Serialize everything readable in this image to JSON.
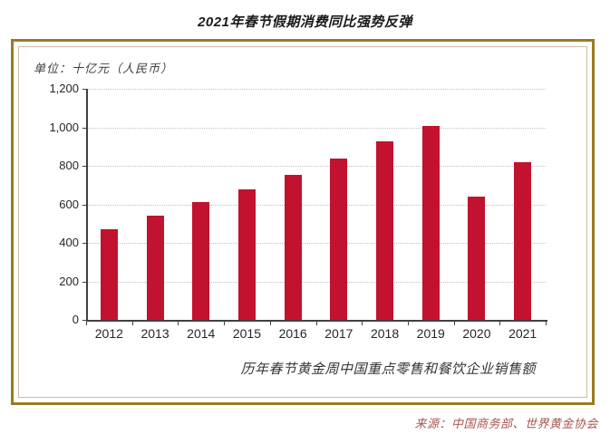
{
  "page": {
    "title": "2021年春节假期消费同比强势反弹",
    "unit_label": "单位：十亿元（人民币）",
    "annotation": "历年春节黄金周中国重点零售和餐饮企业销售额",
    "source": "来源：中国商务部、世界黄金协会"
  },
  "colors": {
    "bar": "#C2122F",
    "box_border_outer": "#9A7B22",
    "box_border_inner": "#CBBE9E",
    "axis": "#404040",
    "gridline": "#C0C0C0",
    "title_text": "#1A1A1A",
    "source_text": "#A5544C"
  },
  "chart_data": {
    "type": "bar",
    "title": "2021年春节假期消费同比强势反弹",
    "subtitle": "历年春节黄金周中国重点零售和餐饮企业销售额",
    "unit": "单位：十亿元（人民币）",
    "ylabel": "十亿元（人民币）",
    "categories": [
      "2012",
      "2013",
      "2014",
      "2015",
      "2016",
      "2017",
      "2018",
      "2019",
      "2020",
      "2021"
    ],
    "values": [
      470,
      540,
      610,
      678,
      754,
      840,
      926,
      1005,
      640,
      821
    ],
    "ylim": [
      0,
      1200
    ],
    "ytick_interval": 200,
    "ytick_labels": [
      "0",
      "200",
      "400",
      "600",
      "800",
      "1,000",
      "1,200"
    ],
    "grid": "horizontal-dotted",
    "legend": "none",
    "source": "来源：中国商务部、世界黄金协会"
  }
}
